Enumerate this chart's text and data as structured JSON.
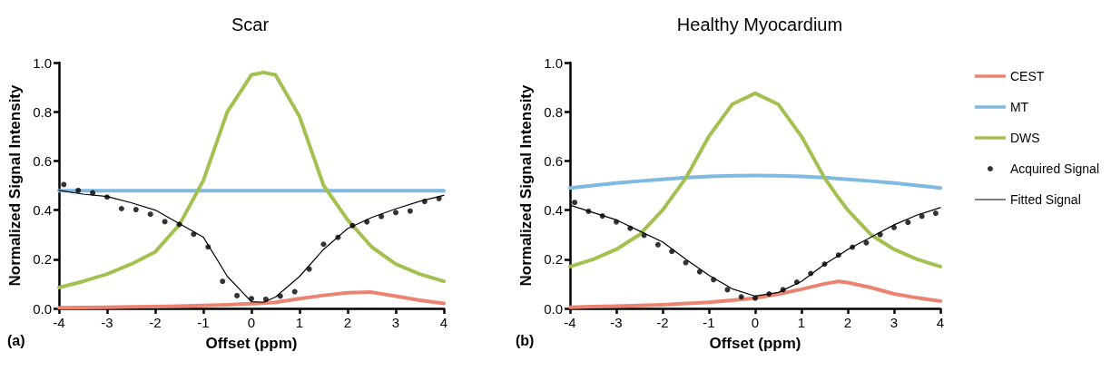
{
  "chart_data": [
    {
      "type": "line",
      "title": "Scar",
      "xlabel": "Offset (ppm)",
      "ylabel": "Normalized Signal Intensity",
      "annotations": [
        "(a)"
      ],
      "x": [
        -4,
        -3.5,
        -3,
        -2.5,
        -2,
        -1.5,
        -1,
        -0.5,
        0,
        0.25,
        0.5,
        1,
        1.5,
        2,
        2.5,
        3,
        3.5,
        4
      ],
      "series": [
        {
          "color": "#ec8370",
          "values": [
            0.003,
            0.004,
            0.005,
            0.006,
            0.007,
            0.009,
            0.012,
            0.015,
            0.019,
            0.021,
            0.025,
            0.04,
            0.053,
            0.064,
            0.066,
            0.05,
            0.033,
            0.02
          ]
        },
        {
          "color": "#7eb9e2",
          "values": [
            0.479,
            0.479,
            0.479,
            0.479,
            0.479,
            0.479,
            0.479,
            0.479,
            0.479,
            0.479,
            0.479,
            0.479,
            0.479,
            0.479,
            0.479,
            0.479,
            0.479,
            0.479
          ]
        },
        {
          "color": "#a3c150",
          "values": [
            0.085,
            0.11,
            0.14,
            0.18,
            0.23,
            0.34,
            0.52,
            0.8,
            0.95,
            0.96,
            0.95,
            0.78,
            0.5,
            0.36,
            0.25,
            0.18,
            0.14,
            0.11
          ]
        },
        {
          "type": "scatter",
          "color": "#000000",
          "marker": "circle",
          "x": [
            -3.9,
            -3.6,
            -3.3,
            -3.0,
            -2.7,
            -2.4,
            -2.1,
            -1.8,
            -1.5,
            -1.2,
            -0.9,
            -0.6,
            -0.3,
            0.0,
            0.3,
            0.6,
            0.9,
            1.2,
            1.5,
            1.8,
            2.1,
            2.4,
            2.7,
            3.0,
            3.3,
            3.6,
            3.9
          ],
          "values": [
            0.504,
            0.48,
            0.47,
            0.453,
            0.406,
            0.402,
            0.383,
            0.353,
            0.342,
            0.302,
            0.25,
            0.11,
            0.052,
            0.04,
            0.037,
            0.05,
            0.068,
            0.16,
            0.261,
            0.289,
            0.337,
            0.352,
            0.374,
            0.39,
            0.396,
            0.435,
            0.447
          ]
        },
        {
          "color": "#000000",
          "line_style": "solid",
          "marker": "none",
          "values": [
            0.48,
            0.465,
            0.455,
            0.43,
            0.4,
            0.345,
            0.29,
            0.13,
            0.027,
            0.025,
            0.046,
            0.13,
            0.24,
            0.325,
            0.37,
            0.405,
            0.436,
            0.46
          ]
        }
      ],
      "xlim": [
        -4,
        4
      ],
      "xticks": [
        -4,
        -3,
        -2,
        -1,
        0,
        1,
        2,
        3,
        4
      ],
      "ylim": [
        0,
        1
      ],
      "yticks": [
        {
          "value": 0,
          "label": "0.0"
        },
        {
          "value": 0.2,
          "label": "0.2"
        },
        {
          "value": 0.4,
          "label": "0.4"
        },
        {
          "value": 0.6,
          "label": "0.6"
        },
        {
          "value": 0.8,
          "label": "0.8"
        },
        {
          "value": 1,
          "label": "1.0"
        }
      ],
      "grid": false,
      "legend": false,
      "marker": "none",
      "line_style": "solid"
    },
    {
      "type": "line",
      "title": "Healthy Myocardium",
      "xlabel": "Offset (ppm)",
      "ylabel": "Normalized Signal Intensity",
      "annotations": [
        "(b)"
      ],
      "x": [
        -4,
        -3.5,
        -3,
        -2.5,
        -2,
        -1.5,
        -1,
        -0.5,
        0,
        0.5,
        1,
        1.5,
        1.8,
        2,
        2.5,
        3,
        3.5,
        4
      ],
      "series": [
        {
          "name": "CEST",
          "color": "#ec8370",
          "values": [
            0.005,
            0.007,
            0.009,
            0.012,
            0.015,
            0.02,
            0.025,
            0.033,
            0.042,
            0.058,
            0.078,
            0.1,
            0.11,
            0.105,
            0.085,
            0.059,
            0.043,
            0.03
          ]
        },
        {
          "name": "MT",
          "color": "#7eb9e2",
          "values": [
            0.49,
            0.5,
            0.51,
            0.518,
            0.525,
            0.532,
            0.537,
            0.54,
            0.541,
            0.54,
            0.537,
            0.532,
            0.528,
            0.525,
            0.518,
            0.51,
            0.5,
            0.49
          ]
        },
        {
          "name": "DWS",
          "color": "#a3c150",
          "values": [
            0.17,
            0.2,
            0.24,
            0.3,
            0.4,
            0.53,
            0.7,
            0.83,
            0.875,
            0.83,
            0.7,
            0.53,
            0.45,
            0.4,
            0.3,
            0.24,
            0.2,
            0.17
          ]
        },
        {
          "name": "Acquired Signal",
          "type": "scatter",
          "color": "#000000",
          "marker": "circle",
          "x": [
            -3.9,
            -3.6,
            -3.3,
            -3.0,
            -2.7,
            -2.4,
            -2.1,
            -1.8,
            -1.5,
            -1.2,
            -0.9,
            -0.6,
            -0.3,
            0.0,
            0.3,
            0.6,
            0.9,
            1.2,
            1.5,
            1.8,
            2.1,
            2.4,
            2.7,
            3.0,
            3.3,
            3.6,
            3.9
          ],
          "values": [
            0.431,
            0.395,
            0.376,
            0.352,
            0.326,
            0.297,
            0.259,
            0.232,
            0.186,
            0.149,
            0.117,
            0.076,
            0.047,
            0.042,
            0.059,
            0.076,
            0.107,
            0.142,
            0.18,
            0.217,
            0.249,
            0.267,
            0.3,
            0.329,
            0.35,
            0.375,
            0.387
          ]
        },
        {
          "name": "Fitted Signal",
          "color": "#000000",
          "line_style": "solid",
          "marker": "none",
          "values": [
            0.42,
            0.39,
            0.36,
            0.315,
            0.27,
            0.2,
            0.135,
            0.08,
            0.05,
            0.065,
            0.11,
            0.18,
            0.215,
            0.24,
            0.29,
            0.34,
            0.38,
            0.41
          ]
        }
      ],
      "xlim": [
        -4,
        4
      ],
      "xticks": [
        -4,
        -3,
        -2,
        -1,
        0,
        1,
        2,
        3,
        4
      ],
      "ylim": [
        0,
        1
      ],
      "yticks": [
        {
          "value": 0,
          "label": "0.0"
        },
        {
          "value": 0.2,
          "label": "0.2"
        },
        {
          "value": 0.4,
          "label": "0.4"
        },
        {
          "value": 0.6,
          "label": "0.6"
        },
        {
          "value": 0.8,
          "label": "0.8"
        },
        {
          "value": 1,
          "label": "1.0"
        }
      ],
      "grid": false,
      "legend": "right",
      "marker": "none",
      "line_style": "solid"
    }
  ]
}
